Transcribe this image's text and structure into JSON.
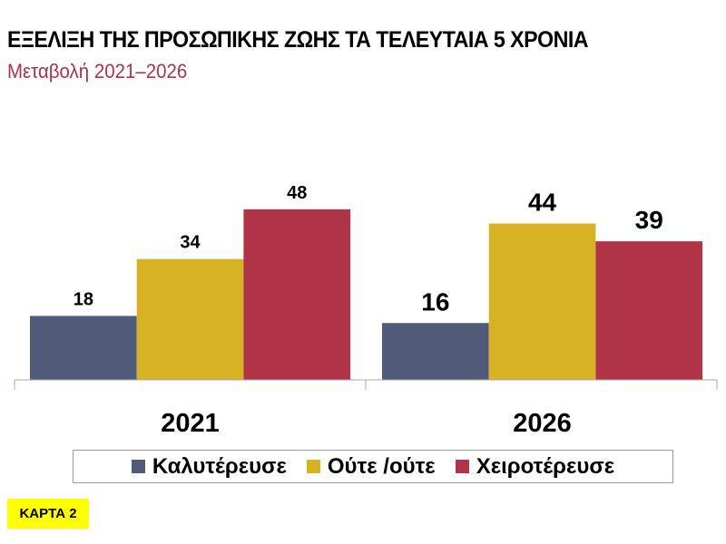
{
  "chart_data": {
    "type": "bar",
    "title": "ΕΞΕΛΙΞΗ ΤΗΣ ΠΡΟΣΩΠΙΚΗΣ ΖΩΗΣ ΤΑ ΤΕΛΕΥΤΑΙΑ 5 ΧΡΟΝΙΑ",
    "subtitle": "Μεταβολή 2021–2026",
    "categories": [
      "2021",
      "2026"
    ],
    "series": [
      {
        "name": "Καλυτέρευσε",
        "color": "#4F5B78",
        "values": [
          18,
          16
        ]
      },
      {
        "name": "Ούτε /ούτε",
        "color": "#D6B224",
        "values": [
          34,
          44
        ]
      },
      {
        "name": "Χειροτέρευσε",
        "color": "#B03447",
        "values": [
          48,
          39
        ]
      }
    ],
    "ylim": [
      0,
      48
    ],
    "grid": false,
    "legend_position": "bottom"
  },
  "badge": {
    "label": "ΚΑΡΤΑ 2",
    "color": "#FFFF00"
  }
}
